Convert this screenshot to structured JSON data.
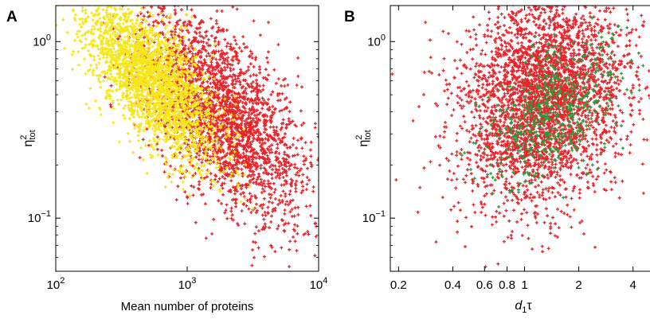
{
  "chart_data": [
    {
      "panel_label": "A",
      "type": "scatter",
      "xlabel": "Mean number of proteins",
      "ylabel_base": "η",
      "ylabel_sup": "2",
      "ylabel_sub": "tot",
      "xscale": "log",
      "yscale": "log",
      "xlim": [
        100,
        10000
      ],
      "ylim": [
        0.05,
        1.6
      ],
      "xticks": [
        {
          "value": 100,
          "base": "10",
          "exp": "2"
        },
        {
          "value": 1000,
          "base": "10",
          "exp": "3"
        },
        {
          "value": 10000,
          "base": "10",
          "exp": "4"
        }
      ],
      "yticks": [
        {
          "value": 1,
          "base": "10",
          "exp": "0"
        },
        {
          "value": 0.1,
          "base": "10",
          "exp": "−1"
        }
      ],
      "grid": false,
      "legend": "none",
      "series": [
        {
          "color": "#e8232a",
          "marker": "plus",
          "cloud": {
            "count": 2600,
            "x_center": 1900,
            "x_spread_log10": 0.32,
            "y_center": 0.38,
            "y_spread_log10": 0.24,
            "slope": -0.55,
            "seed": 11
          }
        },
        {
          "color": "#f4e617",
          "marker": "plus",
          "cloud": {
            "count": 2400,
            "x_center": 520,
            "x_spread_log10": 0.26,
            "y_center": 0.62,
            "y_spread_log10": 0.17,
            "slope": -0.65,
            "seed": 23
          }
        }
      ]
    },
    {
      "panel_label": "B",
      "type": "scatter",
      "xlabel_main": "d",
      "xlabel_sub": "1",
      "xlabel_tail": "τ",
      "ylabel_base": "η",
      "ylabel_sup": "2",
      "ylabel_sub": "tot",
      "xscale": "log",
      "yscale": "log",
      "xlim": [
        0.18,
        5.5
      ],
      "ylim": [
        0.05,
        1.6
      ],
      "xticks": [
        {
          "value": 0.2,
          "label": "0.2"
        },
        {
          "value": 0.4,
          "label": "0.4"
        },
        {
          "value": 0.6,
          "label": "0.6"
        },
        {
          "value": 0.8,
          "label": "0.8"
        },
        {
          "value": 1,
          "label": "1"
        },
        {
          "value": 2,
          "label": "2"
        },
        {
          "value": 4,
          "label": "4"
        }
      ],
      "yticks": [
        {
          "value": 1,
          "base": "10",
          "exp": "0"
        },
        {
          "value": 0.1,
          "base": "10",
          "exp": "−1"
        }
      ],
      "grid": false,
      "legend": "none",
      "series": [
        {
          "color": "#e8232a",
          "marker": "plus",
          "cloud": {
            "count": 3400,
            "x_center": 1.25,
            "x_spread_log10": 0.22,
            "y_center": 0.48,
            "y_spread_log10": 0.3,
            "slope": 0.25,
            "seed": 37
          }
        },
        {
          "color": "#2a9a3a",
          "marker": "plus",
          "cloud": {
            "count": 520,
            "x_center": 1.45,
            "x_spread_log10": 0.19,
            "y_center": 0.4,
            "y_spread_log10": 0.18,
            "slope": 0.55,
            "seed": 41
          }
        }
      ]
    }
  ]
}
